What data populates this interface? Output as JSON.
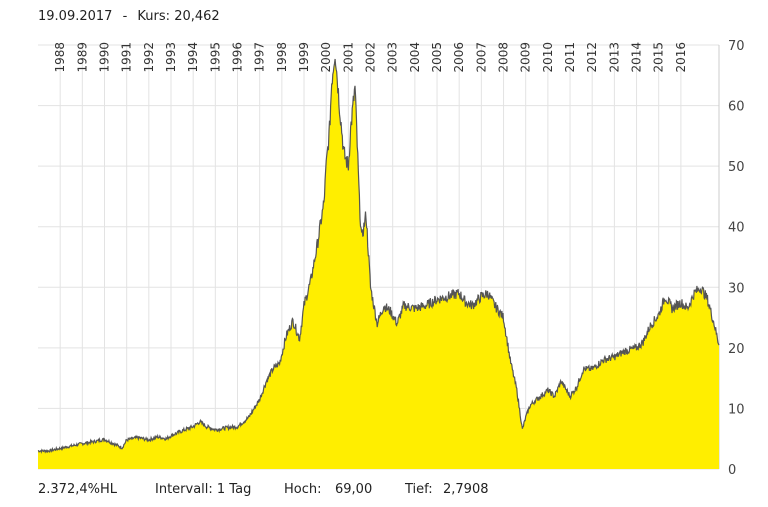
{
  "header": {
    "date": "19.09.2017",
    "separator": "-",
    "kurs_label": "Kurs:",
    "kurs_value": "20,462"
  },
  "footer": {
    "performance": "2.372,4%HL",
    "interval": "Intervall: 1 Tag",
    "high_label": "Hoch:",
    "high_value": "69,00",
    "low_label": "Tief:",
    "low_value": "2,7908"
  },
  "colors": {
    "fill": "#ffee00",
    "line": "#555555",
    "grid": "#e3e3e3"
  },
  "chart_data": {
    "type": "area",
    "title": "",
    "xlabel": "",
    "ylabel": "",
    "ylim": [
      0,
      70
    ],
    "yticks": [
      0,
      10,
      20,
      30,
      40,
      50,
      60,
      70
    ],
    "xticks": [
      "1988",
      "1989",
      "1990",
      "1991",
      "1992",
      "1993",
      "1994",
      "1995",
      "1996",
      "1997",
      "1998",
      "1999",
      "2000",
      "2001",
      "2002",
      "2003",
      "2004",
      "2005",
      "2006",
      "2007",
      "2008",
      "2009",
      "2010",
      "2011",
      "2012",
      "2013",
      "2014",
      "2015",
      "2016"
    ],
    "xlim": [
      1987.0,
      2017.72
    ],
    "grid": true,
    "y_axis_position": "right",
    "series": [
      {
        "x": [
          1987.0,
          1987.5,
          1988.0,
          1988.5,
          1989.0,
          1989.5,
          1990.0,
          1990.4,
          1990.8,
          1991.0,
          1991.5,
          1992.0,
          1992.4,
          1992.8,
          1993.0,
          1993.5,
          1994.0,
          1994.3,
          1994.6,
          1995.0,
          1995.5,
          1996.0,
          1996.5,
          1997.0,
          1997.3,
          1997.6,
          1997.9,
          1998.2,
          1998.5,
          1998.8,
          1999.0,
          1999.3,
          1999.6,
          1999.9,
          2000.0,
          2000.15,
          2000.25,
          2000.4,
          2000.6,
          2000.8,
          2001.0,
          2001.1,
          2001.3,
          2001.5,
          2001.6,
          2001.8,
          2002.0,
          2002.3,
          2002.6,
          2002.9,
          2003.2,
          2003.5,
          2004.0,
          2004.5,
          2005.0,
          2005.5,
          2006.0,
          2006.3,
          2006.6,
          2007.0,
          2007.3,
          2007.6,
          2008.0,
          2008.3,
          2008.6,
          2008.85,
          2009.0,
          2009.2,
          2009.5,
          2010.0,
          2010.3,
          2010.6,
          2011.0,
          2011.3,
          2011.6,
          2012.0,
          2012.5,
          2013.0,
          2013.5,
          2014.0,
          2014.3,
          2014.6,
          2015.0,
          2015.3,
          2015.6,
          2016.0,
          2016.3,
          2016.6,
          2016.9,
          2017.2,
          2017.5,
          2017.72
        ],
        "y": [
          3.0,
          3.0,
          3.4,
          3.8,
          4.2,
          4.5,
          4.9,
          4.2,
          3.5,
          4.8,
          5.2,
          4.8,
          5.3,
          5.0,
          5.5,
          6.3,
          7.0,
          7.8,
          7.0,
          6.5,
          6.8,
          7.0,
          8.5,
          11.5,
          14.5,
          16.5,
          17.5,
          22.0,
          24.5,
          21.5,
          27.0,
          31.0,
          37.0,
          44.0,
          50.0,
          56.0,
          64.0,
          69.0,
          60.0,
          52.0,
          50.0,
          56.0,
          63.0,
          44.0,
          38.0,
          42.0,
          30.0,
          24.0,
          27.0,
          26.0,
          24.0,
          27.0,
          26.5,
          27.0,
          28.0,
          28.5,
          29.0,
          27.5,
          27.0,
          28.5,
          29.0,
          27.0,
          25.0,
          18.0,
          13.0,
          6.5,
          8.5,
          10.5,
          11.5,
          13.0,
          12.0,
          14.5,
          12.0,
          13.5,
          16.5,
          16.5,
          18.0,
          18.5,
          19.5,
          20.0,
          21.0,
          23.5,
          25.5,
          28.5,
          26.5,
          27.5,
          26.5,
          29.0,
          30.0,
          28.0,
          24.0,
          20.462
        ]
      }
    ]
  }
}
